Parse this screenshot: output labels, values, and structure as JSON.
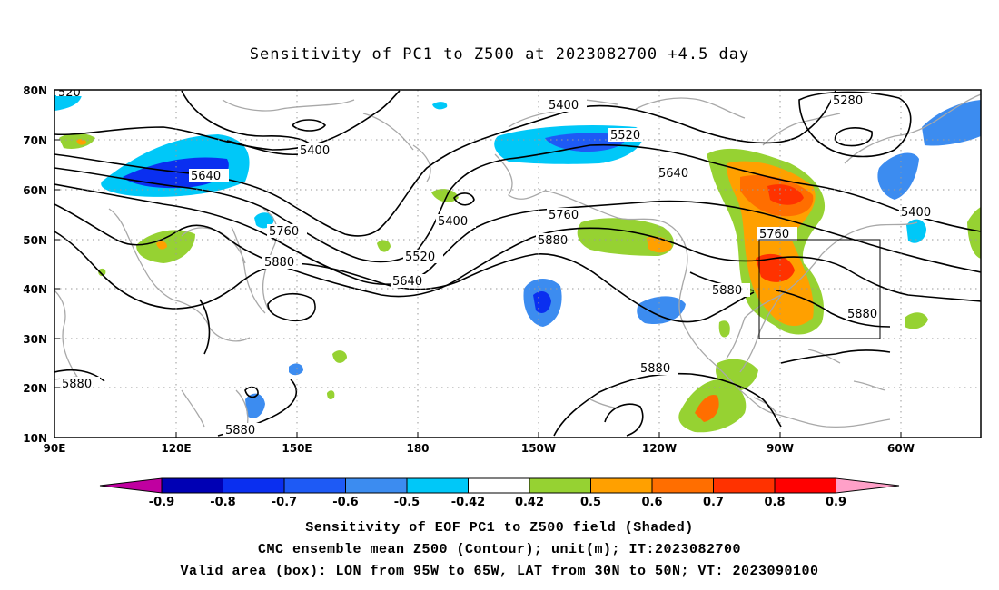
{
  "title": "Sensitivity of PC1 to Z500 at 2023082700 +4.5 day",
  "lat_labels": [
    "80N",
    "70N",
    "60N",
    "50N",
    "40N",
    "30N",
    "20N",
    "10N"
  ],
  "lon_labels": [
    "90E",
    "120E",
    "150E",
    "180",
    "150W",
    "120W",
    "90W",
    "60W"
  ],
  "contour_labels": [
    "5280",
    "5400",
    "5400",
    "5400",
    "5400",
    "5520",
    "5520",
    "5640",
    "5640",
    "5640",
    "5760",
    "5760",
    "5760",
    "5880",
    "5880",
    "5880",
    "5880",
    "5880",
    "5880",
    "5880",
    "520"
  ],
  "colorbar": {
    "labels": [
      "-0.9",
      "-0.8",
      "-0.7",
      "-0.6",
      "-0.5",
      "-0.42",
      "0.42",
      "0.5",
      "0.6",
      "0.7",
      "0.8",
      "0.9"
    ],
    "colors": [
      "#c000a0",
      "#0000b4",
      "#0a2ff0",
      "#1e5af5",
      "#3c8cf0",
      "#00c8f8",
      "#ffffff",
      "#96d232",
      "#ffa000",
      "#ff6e00",
      "#ff3200",
      "#ff0000",
      "#ffa0c8"
    ]
  },
  "valid_box": {
    "lon_from": "95W",
    "lon_to": "65W",
    "lat_from": "30N",
    "lat_to": "50N"
  },
  "captions": {
    "line1": "Sensitivity of EOF PC1 to Z500 field (Shaded)",
    "line2": "CMC ensemble mean Z500 (Contour); unit(m); IT:2023082700",
    "line3": "Valid area (box): LON from 95W to 65W, LAT from 30N to 50N; VT: 2023090100"
  }
}
